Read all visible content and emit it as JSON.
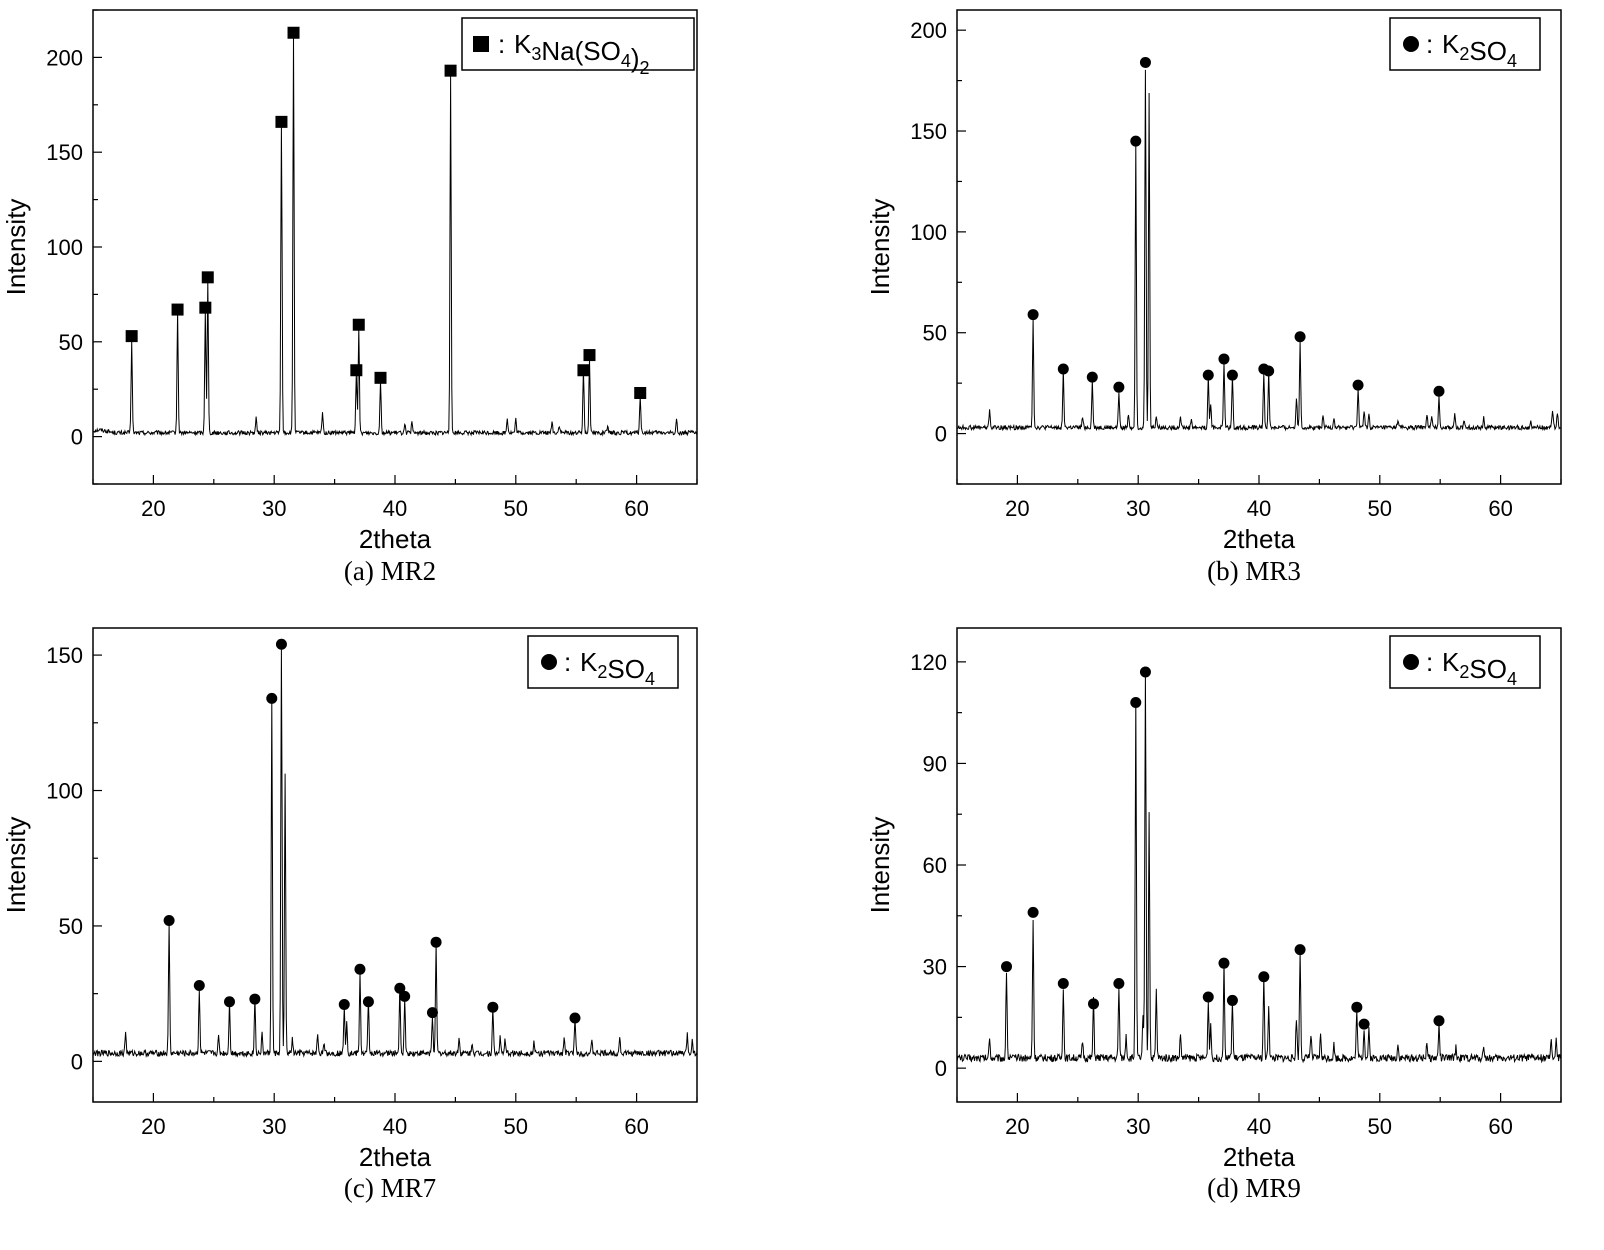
{
  "figure": {
    "name": "xrd-patterns-figure"
  },
  "chart_data": [
    {
      "id": "a",
      "type": "line",
      "title": "",
      "caption": "(a) MR2",
      "xlabel": "2theta",
      "ylabel": "Intensity",
      "xlim": [
        15,
        65
      ],
      "ylim": [
        -25,
        225
      ],
      "xticks": [
        20,
        30,
        40,
        50,
        60
      ],
      "yticks": [
        0,
        50,
        100,
        150,
        200
      ],
      "grid": false,
      "legend": {
        "placement": "top-right",
        "marker": "square",
        "label_parts": [
          [
            "K",
            false
          ],
          [
            "3",
            true
          ],
          [
            "Na(SO",
            false
          ],
          [
            "4",
            true
          ],
          [
            ")",
            false
          ],
          [
            "2",
            true
          ]
        ]
      },
      "baseline": 2,
      "peaks": [
        [
          18.2,
          48
        ],
        [
          22.0,
          63
        ],
        [
          24.3,
          65
        ],
        [
          24.5,
          80
        ],
        [
          28.5,
          8
        ],
        [
          30.6,
          163
        ],
        [
          31.6,
          210
        ],
        [
          34.0,
          11
        ],
        [
          36.8,
          32
        ],
        [
          37.0,
          55
        ],
        [
          38.8,
          28
        ],
        [
          40.8,
          5
        ],
        [
          41.4,
          5
        ],
        [
          44.6,
          189
        ],
        [
          49.3,
          8
        ],
        [
          50.0,
          7
        ],
        [
          53.0,
          6
        ],
        [
          53.6,
          4
        ],
        [
          55.6,
          33
        ],
        [
          56.1,
          40
        ],
        [
          57.6,
          3
        ],
        [
          60.3,
          20
        ],
        [
          63.3,
          7
        ]
      ],
      "markers": [
        [
          18.2,
          53
        ],
        [
          22.0,
          67
        ],
        [
          24.3,
          68
        ],
        [
          24.5,
          84
        ],
        [
          30.6,
          166
        ],
        [
          31.6,
          213
        ],
        [
          36.8,
          35
        ],
        [
          37.0,
          59
        ],
        [
          38.8,
          31
        ],
        [
          44.6,
          193
        ],
        [
          55.6,
          35
        ],
        [
          56.1,
          43
        ],
        [
          60.3,
          23
        ]
      ]
    },
    {
      "id": "b",
      "type": "line",
      "title": "",
      "caption": "(b) MR3",
      "xlabel": "2theta",
      "ylabel": "Intensity",
      "xlim": [
        15,
        65
      ],
      "ylim": [
        -25,
        210
      ],
      "xticks": [
        20,
        30,
        40,
        50,
        60
      ],
      "yticks": [
        0,
        50,
        100,
        150,
        200
      ],
      "grid": false,
      "legend": {
        "placement": "top-right",
        "marker": "circle",
        "label_parts": [
          [
            "K",
            false
          ],
          [
            "2",
            true
          ],
          [
            "SO",
            false
          ],
          [
            "4",
            true
          ]
        ]
      },
      "baseline": 3,
      "peaks": [
        [
          17.7,
          9
        ],
        [
          21.3,
          54
        ],
        [
          23.8,
          28
        ],
        [
          25.4,
          5
        ],
        [
          26.2,
          23
        ],
        [
          28.4,
          18
        ],
        [
          29.2,
          7
        ],
        [
          29.8,
          140
        ],
        [
          30.6,
          178
        ],
        [
          30.9,
          165
        ],
        [
          31.5,
          6
        ],
        [
          33.5,
          6
        ],
        [
          34.4,
          4
        ],
        [
          35.8,
          25
        ],
        [
          36.0,
          12
        ],
        [
          37.1,
          33
        ],
        [
          37.8,
          26
        ],
        [
          40.4,
          27
        ],
        [
          40.8,
          27
        ],
        [
          43.1,
          15
        ],
        [
          43.4,
          43
        ],
        [
          45.3,
          5
        ],
        [
          46.2,
          5
        ],
        [
          48.2,
          20
        ],
        [
          48.7,
          8
        ],
        [
          49.1,
          7
        ],
        [
          51.5,
          4
        ],
        [
          53.9,
          7
        ],
        [
          54.3,
          5
        ],
        [
          54.9,
          16
        ],
        [
          56.2,
          6
        ],
        [
          57.0,
          4
        ],
        [
          58.6,
          5
        ],
        [
          62.5,
          4
        ],
        [
          64.3,
          9
        ],
        [
          64.7,
          8
        ]
      ],
      "markers": [
        [
          21.3,
          59
        ],
        [
          23.8,
          32
        ],
        [
          26.2,
          28
        ],
        [
          28.4,
          23
        ],
        [
          29.8,
          145
        ],
        [
          30.6,
          184
        ],
        [
          35.8,
          29
        ],
        [
          37.1,
          37
        ],
        [
          37.8,
          29
        ],
        [
          40.4,
          32
        ],
        [
          40.8,
          31
        ],
        [
          43.4,
          48
        ],
        [
          48.2,
          24
        ],
        [
          54.9,
          21
        ]
      ]
    },
    {
      "id": "c",
      "type": "line",
      "title": "",
      "caption": "(c) MR7",
      "xlabel": "2theta",
      "ylabel": "Intensity",
      "xlim": [
        15,
        65
      ],
      "ylim": [
        -15,
        160
      ],
      "xticks": [
        20,
        30,
        40,
        50,
        60
      ],
      "yticks": [
        0,
        50,
        100,
        150
      ],
      "grid": false,
      "legend": {
        "placement": "top-right",
        "marker": "circle",
        "label_parts": [
          [
            "K",
            false
          ],
          [
            "2",
            true
          ],
          [
            "SO",
            false
          ],
          [
            "4",
            true
          ]
        ]
      },
      "baseline": 3,
      "peaks": [
        [
          17.7,
          8
        ],
        [
          21.3,
          48
        ],
        [
          23.8,
          24
        ],
        [
          25.4,
          6
        ],
        [
          26.3,
          19
        ],
        [
          28.4,
          20
        ],
        [
          29.0,
          7
        ],
        [
          29.8,
          130
        ],
        [
          30.6,
          150
        ],
        [
          30.9,
          103
        ],
        [
          31.5,
          5
        ],
        [
          33.6,
          7
        ],
        [
          34.1,
          4
        ],
        [
          35.8,
          18
        ],
        [
          36.0,
          12
        ],
        [
          37.1,
          29
        ],
        [
          37.8,
          19
        ],
        [
          40.4,
          23
        ],
        [
          40.8,
          20
        ],
        [
          43.1,
          14
        ],
        [
          43.4,
          40
        ],
        [
          45.3,
          6
        ],
        [
          46.4,
          4
        ],
        [
          48.1,
          16
        ],
        [
          48.7,
          6
        ],
        [
          49.1,
          5
        ],
        [
          51.5,
          4
        ],
        [
          54.0,
          6
        ],
        [
          54.9,
          14
        ],
        [
          56.3,
          4
        ],
        [
          58.6,
          6
        ],
        [
          64.2,
          7
        ],
        [
          64.6,
          5
        ]
      ],
      "markers": [
        [
          21.3,
          52
        ],
        [
          23.8,
          28
        ],
        [
          26.3,
          22
        ],
        [
          28.4,
          23
        ],
        [
          29.8,
          134
        ],
        [
          30.6,
          154
        ],
        [
          35.8,
          21
        ],
        [
          37.1,
          34
        ],
        [
          37.8,
          22
        ],
        [
          40.4,
          27
        ],
        [
          40.8,
          24
        ],
        [
          43.1,
          18
        ],
        [
          43.4,
          44
        ],
        [
          48.1,
          20
        ],
        [
          54.9,
          16
        ]
      ]
    },
    {
      "id": "d",
      "type": "line",
      "title": "",
      "caption": "(d) MR9",
      "xlabel": "2theta",
      "ylabel": "Intensity",
      "xlim": [
        15,
        65
      ],
      "ylim": [
        -10,
        130
      ],
      "xticks": [
        20,
        30,
        40,
        50,
        60
      ],
      "yticks": [
        0,
        30,
        60,
        90,
        120
      ],
      "grid": false,
      "legend": {
        "placement": "top-right",
        "marker": "circle",
        "label_parts": [
          [
            "K",
            false
          ],
          [
            "2",
            true
          ],
          [
            "SO",
            false
          ],
          [
            "4",
            true
          ]
        ]
      },
      "baseline": 3,
      "peaks": [
        [
          17.7,
          6
        ],
        [
          19.1,
          26
        ],
        [
          21.3,
          41
        ],
        [
          23.8,
          21
        ],
        [
          25.4,
          5
        ],
        [
          26.3,
          17
        ],
        [
          28.4,
          21
        ],
        [
          29.0,
          7
        ],
        [
          29.8,
          105
        ],
        [
          30.4,
          12
        ],
        [
          30.6,
          114
        ],
        [
          30.9,
          73
        ],
        [
          31.5,
          20
        ],
        [
          33.5,
          7
        ],
        [
          35.8,
          17
        ],
        [
          36.0,
          10
        ],
        [
          37.1,
          28
        ],
        [
          37.8,
          17
        ],
        [
          40.4,
          24
        ],
        [
          40.8,
          16
        ],
        [
          43.1,
          12
        ],
        [
          43.4,
          32
        ],
        [
          44.3,
          7
        ],
        [
          45.1,
          7
        ],
        [
          46.2,
          4
        ],
        [
          48.1,
          14
        ],
        [
          48.7,
          9
        ],
        [
          49.1,
          8
        ],
        [
          51.5,
          4
        ],
        [
          53.9,
          5
        ],
        [
          54.9,
          10
        ],
        [
          56.3,
          3
        ],
        [
          58.6,
          4
        ],
        [
          64.2,
          5
        ],
        [
          64.6,
          5
        ]
      ],
      "markers": [
        [
          19.1,
          30
        ],
        [
          21.3,
          46
        ],
        [
          23.8,
          25
        ],
        [
          26.3,
          19
        ],
        [
          28.4,
          25
        ],
        [
          29.8,
          108
        ],
        [
          30.6,
          117
        ],
        [
          35.8,
          21
        ],
        [
          37.1,
          31
        ],
        [
          37.8,
          20
        ],
        [
          40.4,
          27
        ],
        [
          43.4,
          35
        ],
        [
          48.1,
          18
        ],
        [
          48.7,
          13
        ],
        [
          54.9,
          14
        ]
      ]
    }
  ]
}
